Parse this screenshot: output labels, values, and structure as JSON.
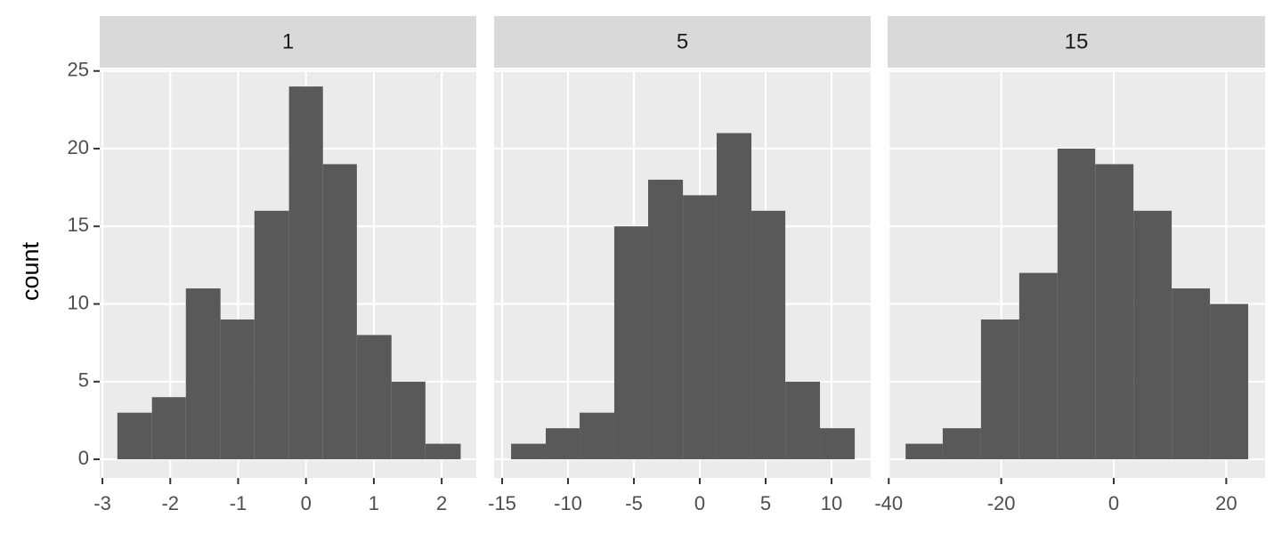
{
  "chart_data": [
    {
      "type": "histogram",
      "title": "1",
      "ylabel": "count",
      "color": "#595959",
      "grid": true,
      "bins": [
        -2.78,
        -2.27,
        -1.77,
        -1.26,
        -0.76,
        -0.25,
        0.25,
        0.75,
        1.26,
        1.76,
        2.28
      ],
      "values": [
        3,
        4,
        11,
        9,
        16,
        24,
        19,
        8,
        5,
        1
      ],
      "xlim": [
        -3.04,
        2.51
      ],
      "xticks": [
        -3,
        -2,
        -1,
        0,
        1,
        2
      ],
      "ylim": [
        -1.2,
        25.1
      ],
      "yticks": [
        0,
        5,
        10,
        15,
        20,
        25
      ]
    },
    {
      "type": "histogram",
      "title": "5",
      "color": "#595959",
      "grid": true,
      "bins": [
        -14.32,
        -11.69,
        -9.12,
        -6.49,
        -3.92,
        -1.28,
        1.28,
        3.92,
        6.49,
        9.12,
        11.76
      ],
      "values": [
        1,
        2,
        3,
        15,
        18,
        17,
        21,
        16,
        5,
        2
      ],
      "xlim": [
        -15.61,
        12.97
      ],
      "xticks": [
        -15,
        -10,
        -5,
        0,
        5,
        10
      ],
      "ylim": [
        -1.2,
        25.1
      ],
      "yticks": [
        0,
        5,
        10,
        15,
        20,
        25
      ]
    },
    {
      "type": "histogram",
      "title": "15",
      "color": "#595959",
      "grid": true,
      "bins": [
        -37.0,
        -30.4,
        -23.6,
        -16.8,
        -10.0,
        -3.3,
        3.5,
        10.3,
        17.1,
        23.9
      ],
      "values": [
        1,
        2,
        9,
        12,
        20,
        19,
        16,
        11,
        10
      ],
      "xlim": [
        -40.2,
        26.9
      ],
      "xticks": [
        -40,
        -20,
        0,
        20
      ],
      "ylim": [
        -1.2,
        25.1
      ],
      "yticks": [
        0,
        5,
        10,
        15,
        20,
        25
      ]
    }
  ]
}
